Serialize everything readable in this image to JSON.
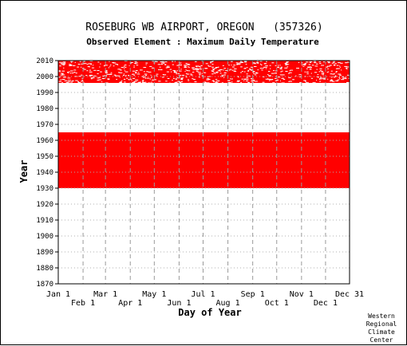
{
  "chart_data": {
    "type": "heatmap",
    "title": "ROSEBURG WB AIRPORT, OREGON   (357326)",
    "subtitle": "Observed Element : Maximum Daily Temperature",
    "xlabel": "Day of Year",
    "ylabel": "Year",
    "ylim": [
      1870,
      2010
    ],
    "y_ticks": [
      1870,
      1880,
      1890,
      1900,
      1910,
      1920,
      1930,
      1940,
      1950,
      1960,
      1970,
      1980,
      1990,
      2000,
      2010
    ],
    "x_ticks_upper": [
      "Jan 1",
      "Mar 1",
      "May 1",
      "Jul 1",
      "Sep 1",
      "Nov 1",
      "Dec 31"
    ],
    "x_ticks_lower": [
      "Feb 1",
      "Apr 1",
      "Jun 1",
      "Aug 1",
      "Oct 1",
      "Dec 1"
    ],
    "grid": true,
    "data_color": "#ff0000",
    "coverage_blocks": [
      {
        "start_year": 1930,
        "end_year": 1965,
        "start_day": 1,
        "end_day": 365,
        "completeness": "complete"
      },
      {
        "start_year": 1996,
        "end_year": 2010,
        "start_day": 1,
        "end_day": 365,
        "completeness": "partial"
      }
    ]
  },
  "credit": [
    "Western",
    "Regional",
    "Climate",
    "Center"
  ]
}
